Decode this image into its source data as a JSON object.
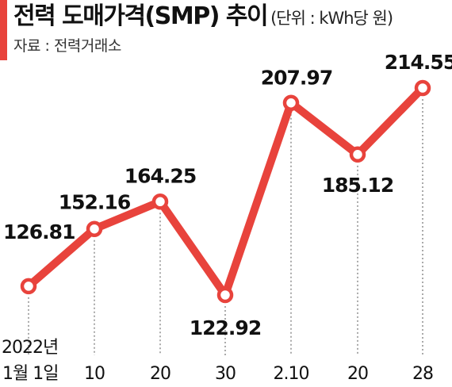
{
  "header": {
    "title": "전력 도매가격(SMP) 추이",
    "unit": "(단위 : kWh당 원)",
    "source": "자료 : 전력거래소"
  },
  "colors": {
    "accent": "#e8433c",
    "text": "#111111"
  },
  "chart_data": {
    "type": "line",
    "title": "전력 도매가격(SMP) 추이",
    "unit": "kWh당 원",
    "year_label": "2022년",
    "categories": [
      "1월 1일",
      "10",
      "20",
      "30",
      "2.10",
      "20",
      "28"
    ],
    "series": [
      {
        "values": [
          126.81,
          152.16,
          164.25,
          122.92,
          207.97,
          185.12,
          214.55
        ],
        "labels": [
          "126.81",
          "152.16",
          "164.25",
          "122.92",
          "207.97",
          "185.12",
          "214.55"
        ]
      }
    ],
    "grid": false,
    "legend": "none"
  }
}
